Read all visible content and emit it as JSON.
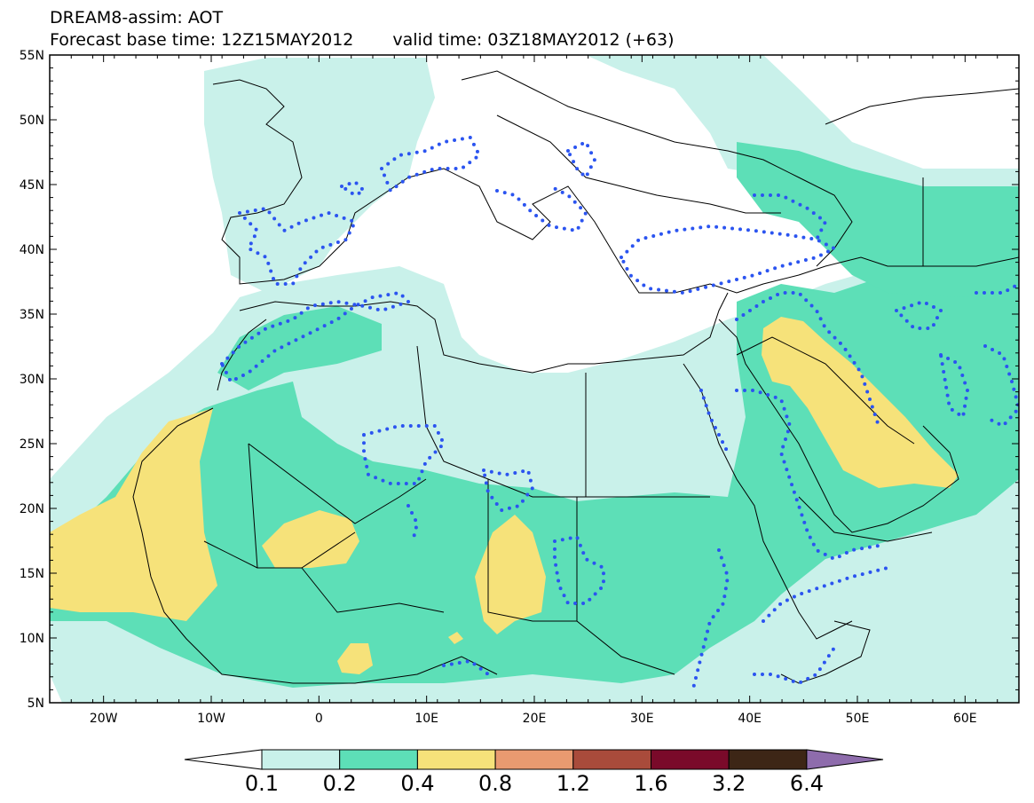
{
  "header": {
    "line1": "DREAM8-assim: AOT",
    "base_time": "Forecast base time: 12Z15MAY2012",
    "valid_time": "valid time: 03Z18MAY2012 (+63)"
  },
  "map": {
    "region": "North Africa, Middle East and Europe",
    "lon_range": [
      -25,
      65
    ],
    "lat_range": [
      5,
      55
    ],
    "lat_ticks": [
      "55N",
      "50N",
      "45N",
      "40N",
      "35N",
      "30N",
      "25N",
      "20N",
      "15N",
      "10N",
      "5N"
    ],
    "lon_ticks": [
      "20W",
      "10W",
      "0",
      "10E",
      "20E",
      "30E",
      "40E",
      "50E",
      "60E"
    ],
    "field": "aerosol optical thickness",
    "contour_style": "dotted blue"
  },
  "colorbar": {
    "labels": [
      "0.1",
      "0.2",
      "0.4",
      "0.8",
      "1.2",
      "1.6",
      "3.2",
      "6.4"
    ],
    "colors": [
      "#ffffff",
      "#c9f1ea",
      "#5ddfb7",
      "#f6e27a",
      "#e99a70",
      "#a94b3b",
      "#7a0a2a",
      "#3d2616",
      "#8e6cac"
    ]
  },
  "colors": {
    "land_outline": "#000000",
    "dotted_contour": "#2b54f0"
  }
}
